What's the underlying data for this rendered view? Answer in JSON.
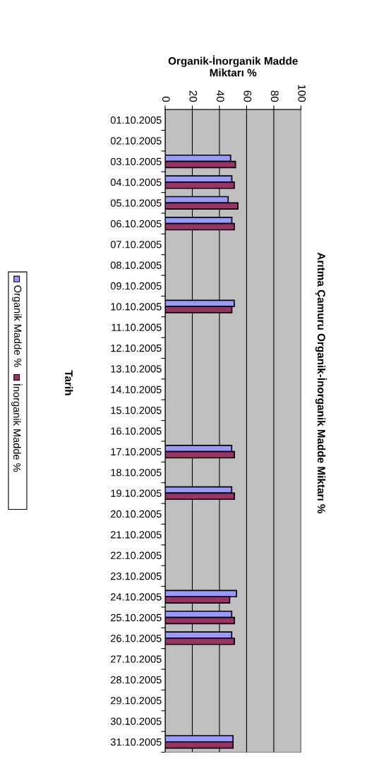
{
  "chart_data": {
    "type": "bar",
    "orientation": "horizontal",
    "title": "Arıtma Çamuru Organik-İnorganik Madde Miktarı %",
    "xlabel": "Organik-İnorganik Madde\nMiktarı %",
    "ylabel": "Tarih",
    "categories": [
      "01.10.2005",
      "02.10.2005",
      "03.10.2005",
      "04.10.2005",
      "05.10.2005",
      "06.10.2005",
      "07.10.2005",
      "08.10.2005",
      "09.10.2005",
      "10.10.2005",
      "11.10.2005",
      "12.10.2005",
      "13.10.2005",
      "14.10.2005",
      "15.10.2005",
      "16.10.2005",
      "17.10.2005",
      "18.10.2005",
      "19.10.2005",
      "20.10.2005",
      "21.10.2005",
      "22.10.2005",
      "23.10.2005",
      "24.10.2005",
      "25.10.2005",
      "26.10.2005",
      "27.10.2005",
      "28.10.2005",
      "29.10.2005",
      "30.10.2005",
      "31.10.2005"
    ],
    "series": [
      {
        "name": "Organik Madde %",
        "color": "#9999ff",
        "values": [
          null,
          null,
          48.2,
          49.1,
          46.4,
          49.1,
          null,
          null,
          null,
          50.9,
          null,
          null,
          null,
          null,
          null,
          null,
          49,
          null,
          49,
          null,
          null,
          null,
          null,
          52.5,
          49,
          49,
          null,
          null,
          null,
          null,
          50
        ]
      },
      {
        "name": "İnorganik Madde %",
        "color": "#993366",
        "values": [
          null,
          null,
          51.8,
          50.9,
          53.6,
          50.9,
          null,
          null,
          null,
          49.1,
          null,
          null,
          null,
          null,
          null,
          null,
          51,
          null,
          51,
          null,
          null,
          null,
          null,
          47.5,
          51,
          51,
          null,
          null,
          null,
          null,
          50
        ]
      }
    ],
    "xlim": [
      0,
      100
    ],
    "xticks": [
      0,
      20,
      40,
      60,
      80,
      100
    ],
    "grid": "x",
    "legend": "left"
  }
}
